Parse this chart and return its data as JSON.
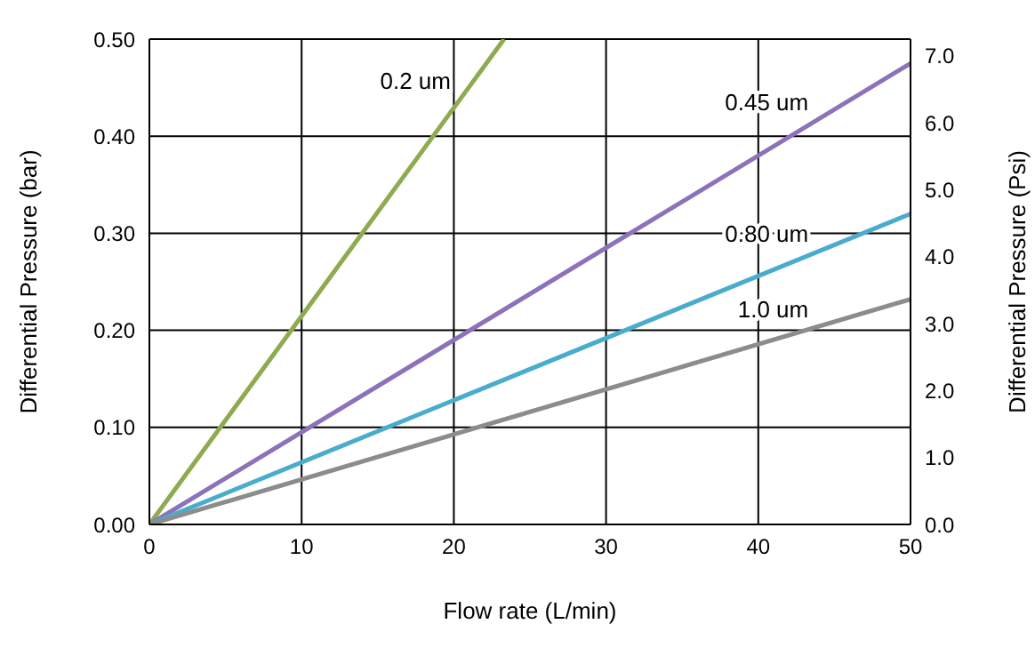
{
  "chart_data": {
    "type": "line",
    "xlabel": "Flow rate (L/min)",
    "ylabel": "Differential Pressure (bar)",
    "y2label": "Differential Pressure (Psi)",
    "xlim": [
      0,
      50
    ],
    "xticks": [
      0,
      10,
      20,
      30,
      40,
      50
    ],
    "ylim": [
      0,
      0.5
    ],
    "yticks": [
      {
        "value": 0,
        "label": "0.00"
      },
      {
        "value": 0.1,
        "label": "0.10"
      },
      {
        "value": 0.2,
        "label": "0.20"
      },
      {
        "value": 0.3,
        "label": "0.30"
      },
      {
        "value": 0.4,
        "label": "0.40"
      },
      {
        "value": 0.5,
        "label": "0.50"
      }
    ],
    "y2lim": [
      0,
      7.25
    ],
    "y2ticks": [
      {
        "value": 0,
        "label": "0.0"
      },
      {
        "value": 1,
        "label": "1.0"
      },
      {
        "value": 2,
        "label": "2.0"
      },
      {
        "value": 3,
        "label": "3.0"
      },
      {
        "value": 4,
        "label": "4.0"
      },
      {
        "value": 5,
        "label": "5.0"
      },
      {
        "value": 6,
        "label": "6.0"
      },
      {
        "value": 7,
        "label": "7.0"
      }
    ],
    "grid": true,
    "series": [
      {
        "name": "0.2 um",
        "color": "#8faa4f",
        "x": [
          0,
          23.3
        ],
        "values": [
          0,
          0.5
        ]
      },
      {
        "name": "0.45 um",
        "color": "#8c72b8",
        "x": [
          0,
          50
        ],
        "values": [
          0,
          0.475
        ]
      },
      {
        "name": "0.80 um",
        "color": "#4aaccc",
        "x": [
          0,
          50
        ],
        "values": [
          0,
          0.32
        ]
      },
      {
        "name": "1.0 um",
        "color": "#8c8c8c",
        "x": [
          0,
          50
        ],
        "values": [
          0,
          0.232
        ]
      }
    ]
  }
}
